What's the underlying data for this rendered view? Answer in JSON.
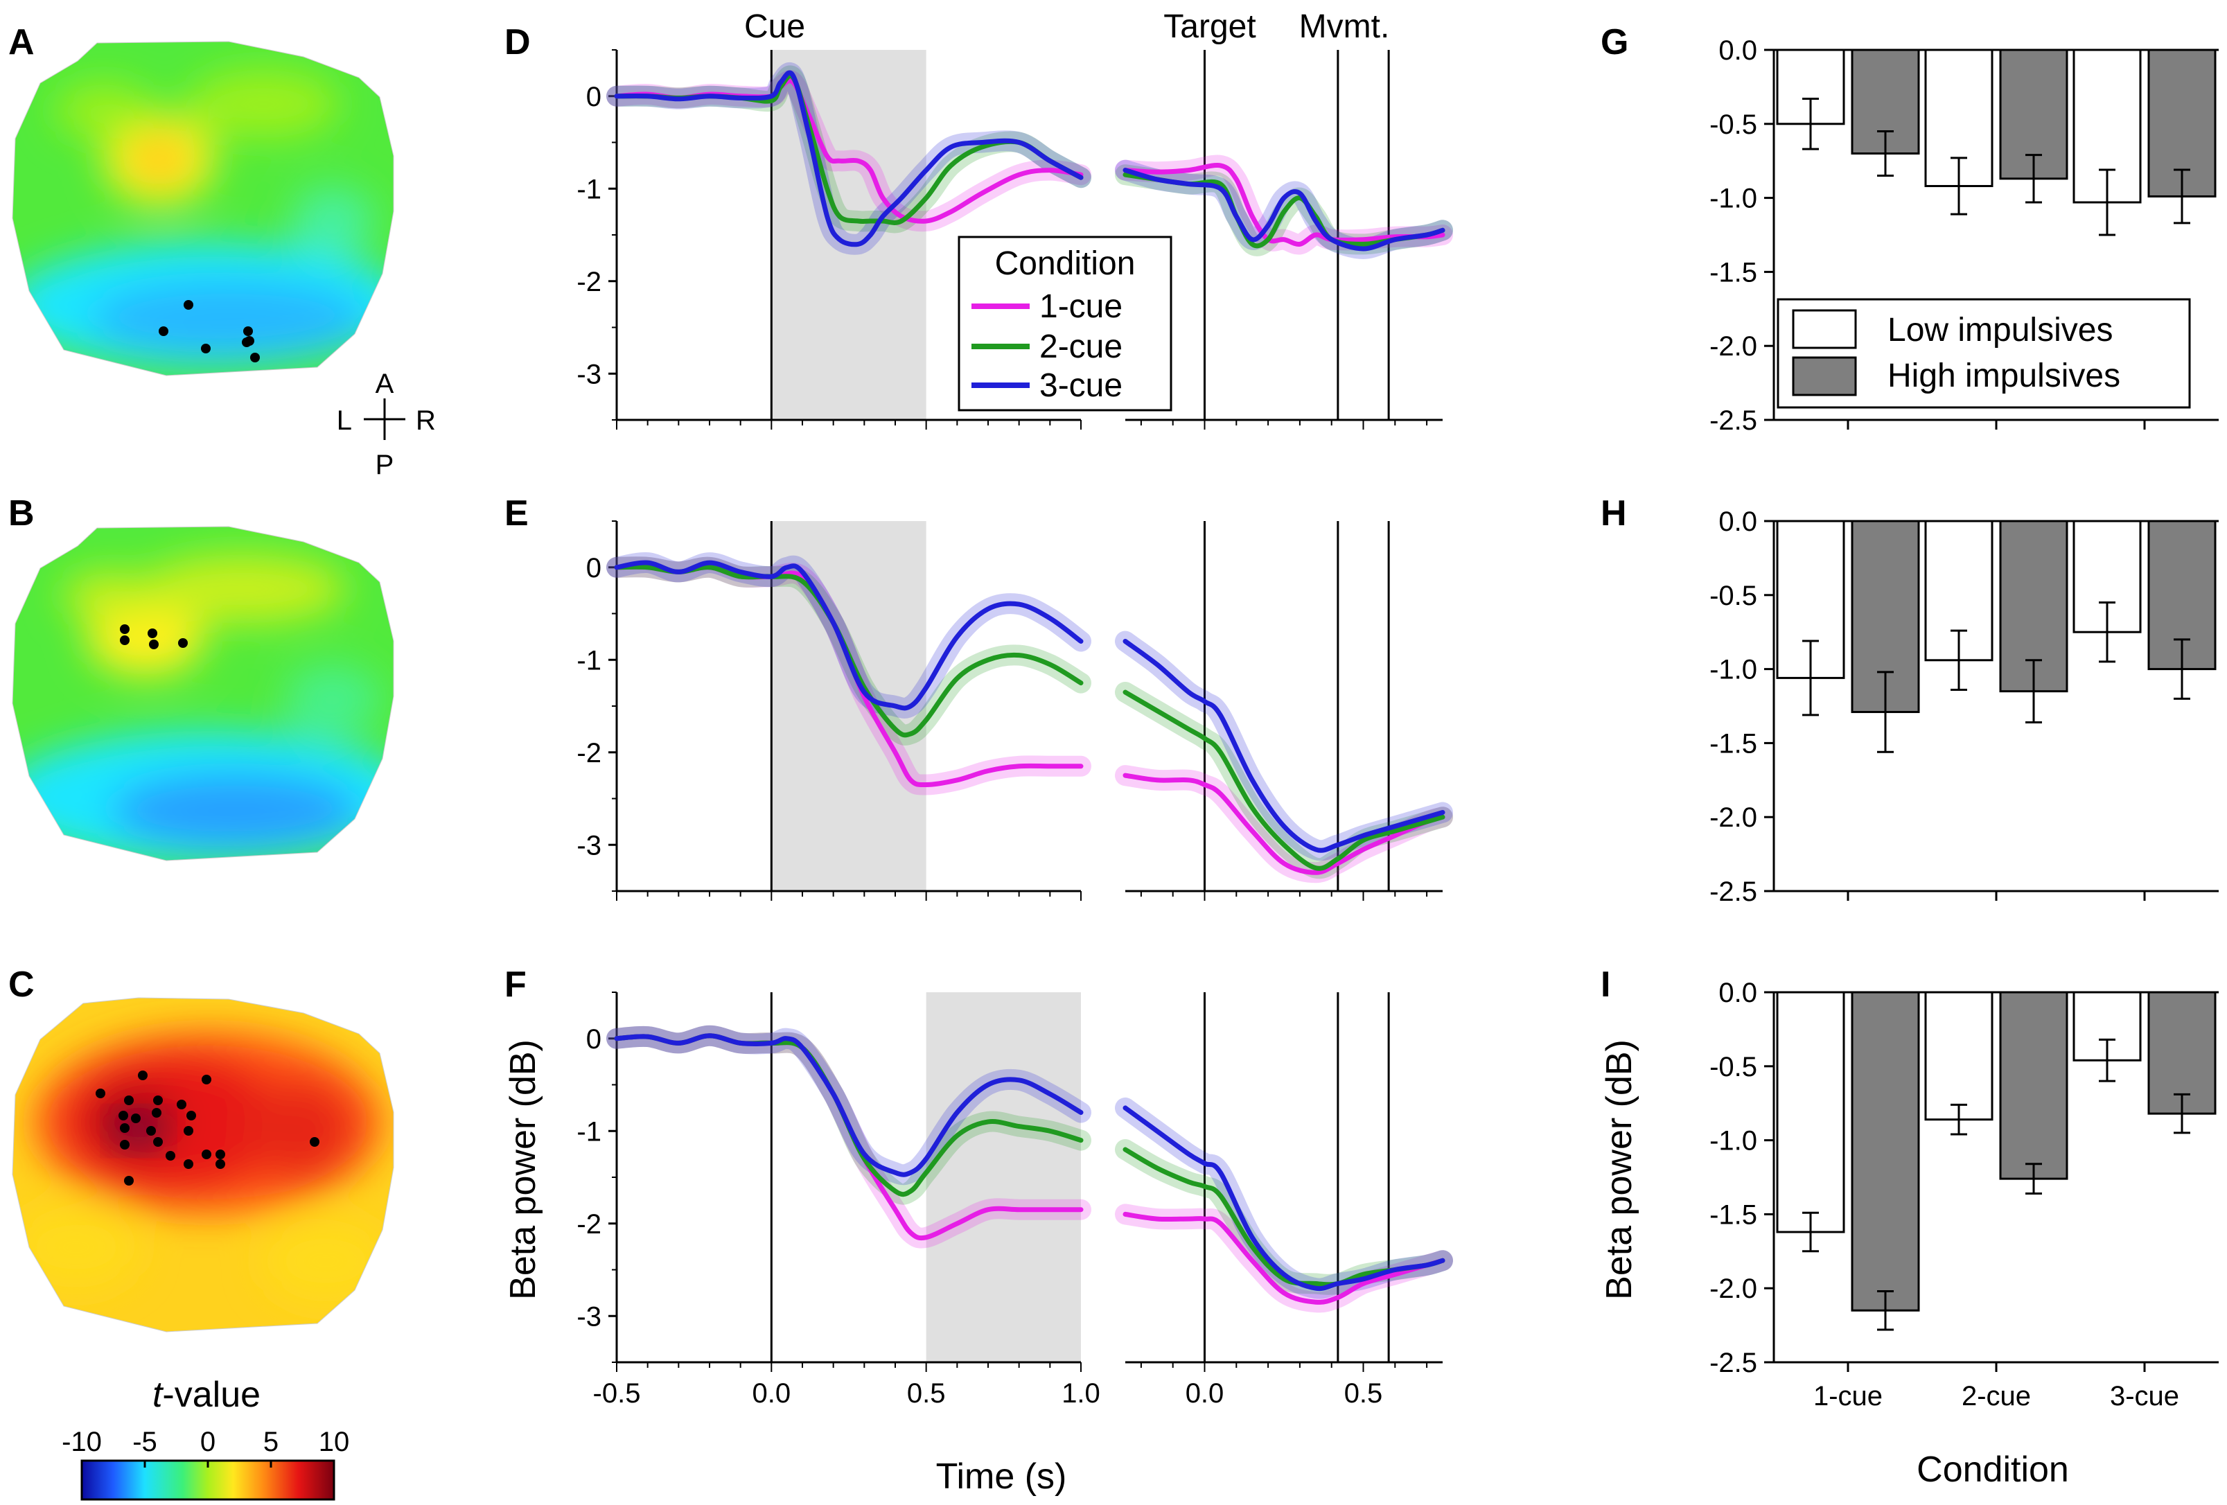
{
  "colors": {
    "one_cue": "#e61ee6",
    "two_cue": "#209a20",
    "three_cue": "#1f1fd8",
    "low_bar": "#ffffff",
    "high_bar": "#7f7f7f",
    "shade": "#e0e0e0",
    "colormap": [
      "#0a0aa0",
      "#1e5cff",
      "#1ee0ff",
      "#3cf07a",
      "#aaf01e",
      "#ffe81e",
      "#ff8c14",
      "#e61414",
      "#7a0010"
    ]
  },
  "panel_labels": {
    "A": "A",
    "B": "B",
    "C": "C",
    "D": "D",
    "E": "E",
    "F": "F",
    "G": "G",
    "H": "H",
    "I": "I"
  },
  "orientation": {
    "A": "A",
    "P": "P",
    "L": "L",
    "R": "R"
  },
  "colorbar": {
    "title_t": "t",
    "title_rest": "-value",
    "ticks": [
      "-10",
      "-5",
      "0",
      "5",
      "10"
    ],
    "range": [
      -10,
      10
    ]
  },
  "topomaps": [
    {
      "panel": "A",
      "description": "t-map",
      "colormap_values_mean": -2
    },
    {
      "panel": "B",
      "description": "t-map",
      "colormap_values_mean": -1
    },
    {
      "panel": "C",
      "description": "t-map",
      "colormap_values_mean": 7
    }
  ],
  "events": {
    "cue": "Cue",
    "target": "Target",
    "mvmt": "Mvmt."
  },
  "legend": {
    "title": "Condition",
    "items": [
      "1-cue",
      "2-cue",
      "3-cue"
    ]
  },
  "bar_legend": {
    "items": [
      "Low impulsives",
      "High impulsives"
    ]
  },
  "axes": {
    "time_xlabel": "Time (s)",
    "beta_ylabel": "Beta power (dB)",
    "condition_xlabel": "Condition",
    "cue_xticks": [
      "-0.5",
      "0.0",
      "0.5",
      "1.0"
    ],
    "target_xticks": [
      "0.0",
      "0.5"
    ],
    "timecourse_yticks": [
      "0",
      "-1",
      "-2",
      "-3"
    ],
    "bar_yticks": [
      "0.0",
      "-0.5",
      "-1.0",
      "-1.5",
      "-2.0",
      "-2.5"
    ]
  },
  "chart_data": [
    {
      "panel": "D",
      "type": "line",
      "title": "",
      "xlabel": "",
      "ylabel": "",
      "xlim_cue": [
        -0.5,
        1.0
      ],
      "xlim_target": [
        -0.25,
        0.75
      ],
      "ylim": [
        -3.5,
        0.5
      ],
      "shade_window": [
        0.0,
        0.5
      ],
      "mvmt_lines": [
        0.42,
        0.58
      ],
      "series": [
        {
          "name": "1-cue",
          "cue": {
            "x": [
              -0.5,
              -0.4,
              -0.3,
              -0.2,
              -0.1,
              0.0,
              0.03,
              0.07,
              0.12,
              0.18,
              0.22,
              0.28,
              0.32,
              0.36,
              0.42,
              0.5,
              0.58,
              0.68,
              0.8,
              0.9,
              1.0
            ],
            "y": [
              0,
              0.02,
              -0.02,
              0.02,
              0.0,
              0.0,
              0.1,
              0.15,
              -0.2,
              -0.65,
              -0.7,
              -0.7,
              -0.8,
              -1.1,
              -1.3,
              -1.35,
              -1.25,
              -1.05,
              -0.85,
              -0.8,
              -0.85
            ]
          },
          "target": {
            "x": [
              -0.25,
              -0.15,
              -0.05,
              0.05,
              0.1,
              0.15,
              0.2,
              0.25,
              0.3,
              0.35,
              0.4,
              0.5,
              0.6,
              0.7,
              0.75
            ],
            "y": [
              -0.8,
              -0.82,
              -0.8,
              -0.75,
              -0.9,
              -1.3,
              -1.55,
              -1.55,
              -1.6,
              -1.5,
              -1.55,
              -1.55,
              -1.52,
              -1.52,
              -1.5
            ]
          }
        },
        {
          "name": "2-cue",
          "cue": {
            "x": [
              -0.5,
              -0.4,
              -0.3,
              -0.2,
              -0.1,
              0.0,
              0.03,
              0.07,
              0.12,
              0.18,
              0.22,
              0.28,
              0.32,
              0.36,
              0.42,
              0.5,
              0.58,
              0.68,
              0.8,
              0.9,
              1.0
            ],
            "y": [
              0,
              0.0,
              -0.02,
              0.0,
              -0.02,
              -0.05,
              0.1,
              0.2,
              -0.3,
              -1.0,
              -1.3,
              -1.35,
              -1.35,
              -1.35,
              -1.35,
              -1.1,
              -0.75,
              -0.55,
              -0.5,
              -0.7,
              -0.88
            ]
          },
          "target": {
            "x": [
              -0.25,
              -0.15,
              -0.05,
              0.05,
              0.1,
              0.15,
              0.2,
              0.25,
              0.3,
              0.35,
              0.4,
              0.5,
              0.6,
              0.7,
              0.75
            ],
            "y": [
              -0.85,
              -0.9,
              -0.95,
              -0.95,
              -1.3,
              -1.6,
              -1.55,
              -1.25,
              -1.1,
              -1.3,
              -1.55,
              -1.6,
              -1.55,
              -1.5,
              -1.45
            ]
          }
        },
        {
          "name": "3-cue",
          "cue": {
            "x": [
              -0.5,
              -0.4,
              -0.3,
              -0.2,
              -0.1,
              0.0,
              0.03,
              0.07,
              0.12,
              0.18,
              0.22,
              0.28,
              0.32,
              0.36,
              0.42,
              0.5,
              0.58,
              0.68,
              0.8,
              0.9,
              1.0
            ],
            "y": [
              0,
              0.0,
              -0.03,
              0.0,
              -0.02,
              0.0,
              0.15,
              0.22,
              -0.4,
              -1.3,
              -1.55,
              -1.6,
              -1.5,
              -1.3,
              -1.1,
              -0.8,
              -0.55,
              -0.5,
              -0.5,
              -0.7,
              -0.88
            ]
          },
          "target": {
            "x": [
              -0.25,
              -0.15,
              -0.05,
              0.05,
              0.1,
              0.15,
              0.2,
              0.25,
              0.3,
              0.35,
              0.4,
              0.5,
              0.6,
              0.7,
              0.75
            ],
            "y": [
              -0.8,
              -0.9,
              -0.95,
              -1.0,
              -1.3,
              -1.55,
              -1.4,
              -1.1,
              -1.05,
              -1.35,
              -1.55,
              -1.65,
              -1.55,
              -1.5,
              -1.45
            ]
          }
        }
      ]
    },
    {
      "panel": "E",
      "type": "line",
      "xlim_cue": [
        -0.5,
        1.0
      ],
      "xlim_target": [
        -0.25,
        0.75
      ],
      "ylim": [
        -3.5,
        0.5
      ],
      "shade_window": [
        0.0,
        0.5
      ],
      "mvmt_lines": [
        0.42,
        0.58
      ],
      "series": [
        {
          "name": "1-cue",
          "cue": {
            "x": [
              -0.5,
              -0.4,
              -0.3,
              -0.2,
              -0.1,
              0.0,
              0.1,
              0.2,
              0.3,
              0.4,
              0.45,
              0.5,
              0.6,
              0.7,
              0.8,
              0.9,
              1.0
            ],
            "y": [
              0,
              0.0,
              -0.05,
              0.0,
              -0.1,
              -0.1,
              -0.1,
              -0.6,
              -1.4,
              -2.0,
              -2.3,
              -2.35,
              -2.3,
              -2.2,
              -2.15,
              -2.15,
              -2.15
            ]
          },
          "target": {
            "x": [
              -0.25,
              -0.15,
              -0.05,
              0.0,
              0.05,
              0.15,
              0.25,
              0.35,
              0.42,
              0.5,
              0.6,
              0.7,
              0.75
            ],
            "y": [
              -2.25,
              -2.3,
              -2.3,
              -2.35,
              -2.45,
              -2.85,
              -3.2,
              -3.3,
              -3.2,
              -3.05,
              -2.9,
              -2.75,
              -2.7
            ]
          }
        },
        {
          "name": "2-cue",
          "cue": {
            "x": [
              -0.5,
              -0.4,
              -0.3,
              -0.2,
              -0.1,
              0.0,
              0.1,
              0.2,
              0.3,
              0.4,
              0.45,
              0.5,
              0.6,
              0.7,
              0.8,
              0.9,
              1.0
            ],
            "y": [
              0,
              0.0,
              -0.05,
              0.0,
              -0.1,
              -0.1,
              -0.15,
              -0.6,
              -1.3,
              -1.75,
              -1.8,
              -1.65,
              -1.2,
              -1.0,
              -0.95,
              -1.05,
              -1.25
            ]
          },
          "target": {
            "x": [
              -0.25,
              -0.15,
              -0.05,
              0.0,
              0.05,
              0.15,
              0.25,
              0.35,
              0.42,
              0.5,
              0.6,
              0.7,
              0.75
            ],
            "y": [
              -1.35,
              -1.55,
              -1.75,
              -1.85,
              -2.0,
              -2.6,
              -3.0,
              -3.25,
              -3.15,
              -2.95,
              -2.85,
              -2.75,
              -2.7
            ]
          }
        },
        {
          "name": "3-cue",
          "cue": {
            "x": [
              -0.5,
              -0.4,
              -0.3,
              -0.2,
              -0.1,
              0.0,
              0.05,
              0.1,
              0.2,
              0.3,
              0.4,
              0.45,
              0.5,
              0.6,
              0.7,
              0.8,
              0.9,
              1.0
            ],
            "y": [
              0,
              0.05,
              -0.05,
              0.05,
              -0.05,
              -0.1,
              0.0,
              -0.05,
              -0.6,
              -1.35,
              -1.5,
              -1.5,
              -1.3,
              -0.75,
              -0.45,
              -0.4,
              -0.55,
              -0.8
            ]
          },
          "target": {
            "x": [
              -0.25,
              -0.15,
              -0.05,
              0.0,
              0.05,
              0.15,
              0.25,
              0.35,
              0.42,
              0.5,
              0.6,
              0.7,
              0.75
            ],
            "y": [
              -0.8,
              -1.05,
              -1.35,
              -1.45,
              -1.6,
              -2.3,
              -2.8,
              -3.05,
              -3.0,
              -2.9,
              -2.8,
              -2.7,
              -2.65
            ]
          }
        }
      ]
    },
    {
      "panel": "F",
      "type": "line",
      "xlim_cue": [
        -0.5,
        1.0
      ],
      "xlim_target": [
        -0.25,
        0.75
      ],
      "ylim": [
        -3.5,
        0.5
      ],
      "shade_window": [
        0.5,
        1.0
      ],
      "mvmt_lines": [
        0.42,
        0.58
      ],
      "series": [
        {
          "name": "1-cue",
          "cue": {
            "x": [
              -0.5,
              -0.4,
              -0.3,
              -0.2,
              -0.1,
              0.0,
              0.1,
              0.2,
              0.3,
              0.4,
              0.45,
              0.5,
              0.6,
              0.7,
              0.8,
              0.9,
              1.0
            ],
            "y": [
              0,
              0.02,
              -0.05,
              0.03,
              -0.05,
              -0.05,
              -0.1,
              -0.6,
              -1.3,
              -1.85,
              -2.1,
              -2.15,
              -2.0,
              -1.85,
              -1.85,
              -1.85,
              -1.85
            ]
          },
          "target": {
            "x": [
              -0.25,
              -0.15,
              -0.05,
              0.0,
              0.05,
              0.15,
              0.25,
              0.35,
              0.42,
              0.5,
              0.6,
              0.7,
              0.75
            ],
            "y": [
              -1.9,
              -1.95,
              -1.95,
              -1.95,
              -2.0,
              -2.4,
              -2.75,
              -2.85,
              -2.8,
              -2.65,
              -2.55,
              -2.45,
              -2.4
            ]
          }
        },
        {
          "name": "2-cue",
          "cue": {
            "x": [
              -0.5,
              -0.4,
              -0.3,
              -0.2,
              -0.1,
              0.0,
              0.1,
              0.2,
              0.3,
              0.4,
              0.45,
              0.5,
              0.6,
              0.7,
              0.8,
              0.9,
              1.0
            ],
            "y": [
              0,
              0.02,
              -0.05,
              0.03,
              -0.05,
              -0.05,
              -0.1,
              -0.6,
              -1.3,
              -1.65,
              -1.65,
              -1.45,
              -1.05,
              -0.9,
              -0.95,
              -1.0,
              -1.1
            ]
          },
          "target": {
            "x": [
              -0.25,
              -0.15,
              -0.05,
              0.0,
              0.05,
              0.15,
              0.25,
              0.35,
              0.42,
              0.5,
              0.6,
              0.7,
              0.75
            ],
            "y": [
              -1.2,
              -1.4,
              -1.55,
              -1.6,
              -1.7,
              -2.25,
              -2.6,
              -2.65,
              -2.65,
              -2.55,
              -2.5,
              -2.45,
              -2.4
            ]
          }
        },
        {
          "name": "3-cue",
          "cue": {
            "x": [
              -0.5,
              -0.4,
              -0.3,
              -0.2,
              -0.1,
              0.0,
              0.05,
              0.1,
              0.2,
              0.3,
              0.4,
              0.45,
              0.5,
              0.6,
              0.7,
              0.8,
              0.9,
              1.0
            ],
            "y": [
              0,
              0.02,
              -0.05,
              0.03,
              -0.05,
              -0.05,
              0.0,
              -0.1,
              -0.6,
              -1.25,
              -1.45,
              -1.45,
              -1.3,
              -0.8,
              -0.5,
              -0.45,
              -0.6,
              -0.8
            ]
          },
          "target": {
            "x": [
              -0.25,
              -0.15,
              -0.05,
              0.0,
              0.05,
              0.15,
              0.25,
              0.35,
              0.42,
              0.5,
              0.6,
              0.7,
              0.75
            ],
            "y": [
              -0.75,
              -1.0,
              -1.25,
              -1.35,
              -1.45,
              -2.15,
              -2.55,
              -2.7,
              -2.65,
              -2.6,
              -2.5,
              -2.45,
              -2.4
            ]
          }
        }
      ]
    },
    {
      "panel": "G",
      "type": "bar",
      "categories": [
        "1-cue",
        "2-cue",
        "3-cue"
      ],
      "ylim": [
        -2.5,
        0.0
      ],
      "series": [
        {
          "name": "Low impulsives",
          "values": [
            -0.5,
            -0.92,
            -1.03
          ],
          "errors": [
            0.17,
            0.19,
            0.22
          ]
        },
        {
          "name": "High impulsives",
          "values": [
            -0.7,
            -0.87,
            -0.99
          ],
          "errors": [
            0.15,
            0.16,
            0.18
          ]
        }
      ]
    },
    {
      "panel": "H",
      "type": "bar",
      "categories": [
        "1-cue",
        "2-cue",
        "3-cue"
      ],
      "ylim": [
        -2.5,
        0.0
      ],
      "series": [
        {
          "name": "Low impulsives",
          "values": [
            -1.06,
            -0.94,
            -0.75
          ],
          "errors": [
            0.25,
            0.2,
            0.2
          ]
        },
        {
          "name": "High impulsives",
          "values": [
            -1.29,
            -1.15,
            -1.0
          ],
          "errors": [
            0.27,
            0.21,
            0.2
          ]
        }
      ]
    },
    {
      "panel": "I",
      "type": "bar",
      "categories": [
        "1-cue",
        "2-cue",
        "3-cue"
      ],
      "ylim": [
        -2.5,
        0.0
      ],
      "xlabel": "Condition",
      "ylabel": "Beta power (dB)",
      "series": [
        {
          "name": "Low impulsives",
          "values": [
            -1.62,
            -0.86,
            -0.46
          ],
          "errors": [
            0.13,
            0.1,
            0.14
          ]
        },
        {
          "name": "High impulsives",
          "values": [
            -2.15,
            -1.26,
            -0.82
          ],
          "errors": [
            0.13,
            0.1,
            0.13
          ]
        }
      ]
    }
  ]
}
